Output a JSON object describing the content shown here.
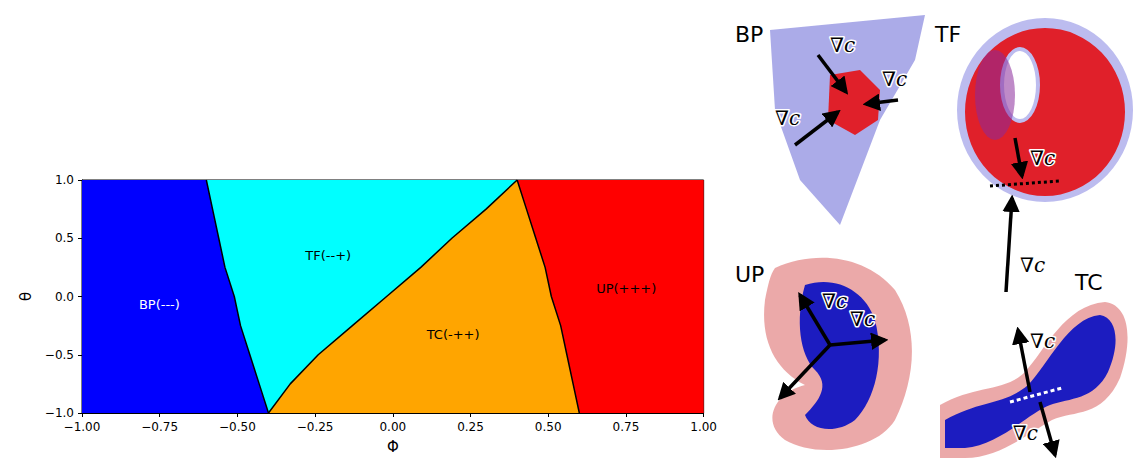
{
  "chart_data": {
    "type": "phase_diagram",
    "x_label": "Φ",
    "y_label": "θ",
    "xlim": [
      -1,
      1
    ],
    "ylim": [
      -1,
      1
    ],
    "xticks": [
      {
        "value": -1,
        "label": "−1.00"
      },
      {
        "value": -0.75,
        "label": "−0.75"
      },
      {
        "value": -0.5,
        "label": "−0.50"
      },
      {
        "value": -0.25,
        "label": "−0.25"
      },
      {
        "value": 0,
        "label": "0.00"
      },
      {
        "value": 0.25,
        "label": "0.25"
      },
      {
        "value": 0.5,
        "label": "0.50"
      },
      {
        "value": 0.75,
        "label": "0.75"
      },
      {
        "value": 1,
        "label": "1.00"
      }
    ],
    "yticks": [
      {
        "value": -1,
        "label": "−1.0"
      },
      {
        "value": -0.5,
        "label": "−0.5"
      },
      {
        "value": 0,
        "label": "0.0"
      },
      {
        "value": 0.5,
        "label": "0.5"
      },
      {
        "value": 1,
        "label": "1.0"
      }
    ],
    "boundaries": [
      {
        "x": [
          -0.4,
          -0.43,
          -0.46,
          -0.49,
          -0.51,
          -0.54,
          -0.56,
          -0.58,
          -0.6
        ],
        "y": [
          -1,
          -0.75,
          -0.5,
          -0.25,
          0,
          0.25,
          0.5,
          0.75,
          1
        ]
      },
      {
        "x": [
          -0.4,
          -0.33,
          -0.24,
          -0.13,
          -0.02,
          0.09,
          0.19,
          0.3,
          0.4
        ],
        "y": [
          -1,
          -0.75,
          -0.5,
          -0.25,
          0,
          0.25,
          0.5,
          0.75,
          1
        ]
      },
      {
        "x": [
          0.6,
          0.58,
          0.56,
          0.54,
          0.51,
          0.49,
          0.46,
          0.43,
          0.4
        ],
        "y": [
          -1,
          -0.75,
          -0.5,
          -0.25,
          0,
          0.25,
          0.5,
          0.75,
          1
        ]
      }
    ],
    "regions": [
      {
        "label": "BP(---)",
        "color": "#0000ff"
      },
      {
        "label": "TF(--+)",
        "color": "#00ffff"
      },
      {
        "label": "TC(-++)",
        "color": "#ffa500"
      },
      {
        "label": "UP(+++)",
        "color": "#ff0000"
      }
    ]
  },
  "panels": [
    {
      "title": "BP",
      "arrow_labels": [
        "∇c",
        "∇c",
        "∇c"
      ]
    },
    {
      "title": "TF",
      "arrow_labels": [
        "∇c",
        "∇c"
      ]
    },
    {
      "title": "UP",
      "arrow_labels": [
        "∇c",
        "∇c"
      ]
    },
    {
      "title": "TC",
      "arrow_labels": [
        "∇c",
        "∇c"
      ]
    }
  ]
}
